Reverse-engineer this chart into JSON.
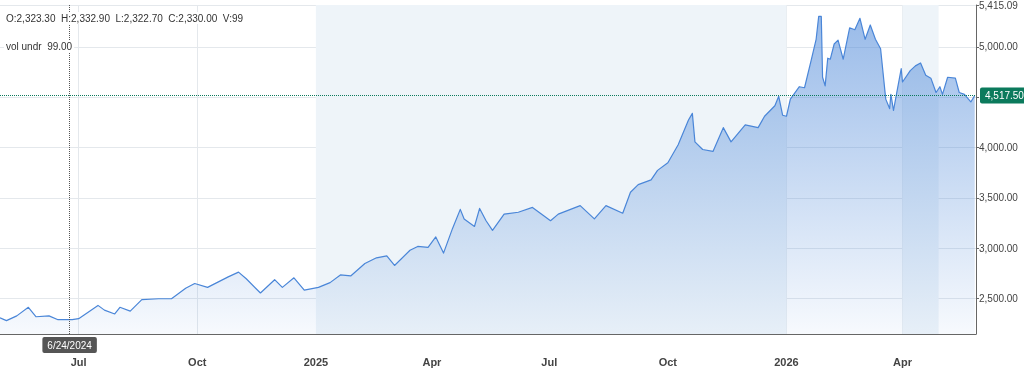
{
  "chart_data": {
    "type": "area",
    "x": [
      "2024-05-01",
      "2024-05-06",
      "2024-05-14",
      "2024-05-23",
      "2024-05-29",
      "2024-06-08",
      "2024-06-15",
      "2024-06-26",
      "2024-07-01",
      "2024-07-16",
      "2024-07-21",
      "2024-07-29",
      "2024-08-02",
      "2024-08-10",
      "2024-08-19",
      "2024-09-01",
      "2024-09-11",
      "2024-09-22",
      "2024-09-29",
      "2024-10-09",
      "2024-10-25",
      "2024-11-02",
      "2024-11-08",
      "2024-11-19",
      "2024-11-30",
      "2024-12-06",
      "2024-12-15",
      "2024-12-23",
      "2025-01-03",
      "2025-01-12",
      "2025-01-20",
      "2025-01-28",
      "2025-02-08",
      "2025-02-17",
      "2025-02-25",
      "2025-03-03",
      "2025-03-15",
      "2025-03-21",
      "2025-03-29",
      "2025-04-04",
      "2025-04-10",
      "2025-04-17",
      "2025-04-23",
      "2025-04-26",
      "2025-05-04",
      "2025-05-08",
      "2025-05-13",
      "2025-05-18",
      "2025-05-27",
      "2025-06-07",
      "2025-06-18",
      "2025-07-02",
      "2025-07-08",
      "2025-07-25",
      "2025-08-05",
      "2025-08-14",
      "2025-08-27",
      "2025-09-02",
      "2025-09-08",
      "2025-09-18",
      "2025-09-23",
      "2025-10-01",
      "2025-10-09",
      "2025-10-17",
      "2025-10-20",
      "2025-10-22",
      "2025-10-28",
      "2025-11-05",
      "2025-11-13",
      "2025-11-19",
      "2025-11-30",
      "2025-12-10",
      "2025-12-15",
      "2025-12-23",
      "2025-12-26",
      "2025-12-29",
      "2026-01-01",
      "2026-01-04",
      "2026-01-11",
      "2026-01-15",
      "2026-01-20",
      "2026-01-24",
      "2026-01-26",
      "2026-01-28",
      "2026-01-29",
      "2026-01-31",
      "2026-02-02",
      "2026-02-04",
      "2026-02-07",
      "2026-02-10",
      "2026-02-14",
      "2026-02-19",
      "2026-02-23",
      "2026-02-27",
      "2026-03-03",
      "2026-03-07",
      "2026-03-11",
      "2026-03-15",
      "2026-03-19",
      "2026-03-22",
      "2026-03-23",
      "2026-03-25",
      "2026-03-27",
      "2026-03-31",
      "2026-04-01",
      "2026-04-07",
      "2026-04-11",
      "2026-04-15",
      "2026-04-19",
      "2026-04-23",
      "2026-04-27",
      "2026-04-30",
      "2026-05-02",
      "2026-05-06",
      "2026-05-12",
      "2026-05-15",
      "2026-05-19",
      "2026-05-24",
      "2026-05-27"
    ],
    "series": [
      {
        "color": "#4a86d8",
        "values": [
          2311,
          2283,
          2330,
          2415,
          2321,
          2330,
          2292,
          2292,
          2302,
          2434,
          2387,
          2349,
          2415,
          2377,
          2491,
          2500,
          2500,
          2604,
          2651,
          2613,
          2717,
          2764,
          2698,
          2557,
          2689,
          2613,
          2708,
          2585,
          2613,
          2660,
          2736,
          2726,
          2849,
          2906,
          2925,
          2830,
          2981,
          3019,
          3009,
          3113,
          2953,
          3198,
          3387,
          3292,
          3217,
          3396,
          3274,
          3179,
          3340,
          3358,
          3406,
          3274,
          3340,
          3424,
          3292,
          3424,
          3349,
          3557,
          3632,
          3679,
          3774,
          3849,
          4028,
          4274,
          4340,
          4057,
          3981,
          3962,
          4198,
          4057,
          4226,
          4198,
          4311,
          4415,
          4509,
          4321,
          4311,
          4481,
          4604,
          4594,
          4858,
          5075,
          5302,
          5302,
          4698,
          4613,
          4887,
          4877,
          5028,
          5066,
          4877,
          5189,
          5170,
          5283,
          5075,
          5217,
          5075,
          4981,
          4481,
          4387,
          4528,
          4368,
          4509,
          4783,
          4651,
          4764,
          4811,
          4840,
          4717,
          4689,
          4547,
          4604,
          4528,
          4698,
          4689,
          4547,
          4528,
          4453,
          4517.5
        ]
      }
    ],
    "xlim": [
      "2024-05-01",
      "2026-05-28"
    ],
    "xticks": [
      {
        "value": "2024-07-01",
        "label": "Jul"
      },
      {
        "value": "2024-10-01",
        "label": "Oct"
      },
      {
        "value": "2025-01-01",
        "label": "2025"
      },
      {
        "value": "2025-04-01",
        "label": "Apr"
      },
      {
        "value": "2025-07-01",
        "label": "Jul"
      },
      {
        "value": "2025-10-01",
        "label": "Oct"
      },
      {
        "value": "2026-01-01",
        "label": "2026"
      },
      {
        "value": "2026-04-01",
        "label": "Apr"
      }
    ],
    "ylim": [
      2150,
      5415.09
    ],
    "yticks": [
      {
        "value": 2500,
        "label": "2,500.00"
      },
      {
        "value": 3000,
        "label": "3,000.00"
      },
      {
        "value": 3500,
        "label": "3,500.00"
      },
      {
        "value": 4000,
        "label": "4,000.00"
      },
      {
        "value": 4500,
        "label": null
      },
      {
        "value": 5000,
        "label": "5,000.00"
      },
      {
        "value": 5415.09,
        "label": "5,415.09"
      }
    ],
    "grid": true,
    "marker": "none",
    "line_style": "solid",
    "ref_lines": [
      {
        "axis": "x",
        "value": "2024-06-24",
        "label": "6/24/2024",
        "line_style": "dotted",
        "color": "#555555"
      },
      {
        "axis": "y",
        "value": 4517.5,
        "label": "4,517.50",
        "line_style": "dotted",
        "color": "#0b7a5c"
      }
    ],
    "bands": [
      {
        "axis": "x",
        "from": "2025-01-01",
        "to": "2026-01-01",
        "label": null,
        "color": "#eef4f9"
      },
      {
        "axis": "x",
        "from": "2026-04-01",
        "to": "2026-04-29",
        "label": null,
        "color": "#eef4f9"
      }
    ],
    "annotations": [
      "O:2,323.30  H:2,332.90  L:2,322.70  C:2,330.00  V:99",
      "vol undr  99.00"
    ]
  }
}
